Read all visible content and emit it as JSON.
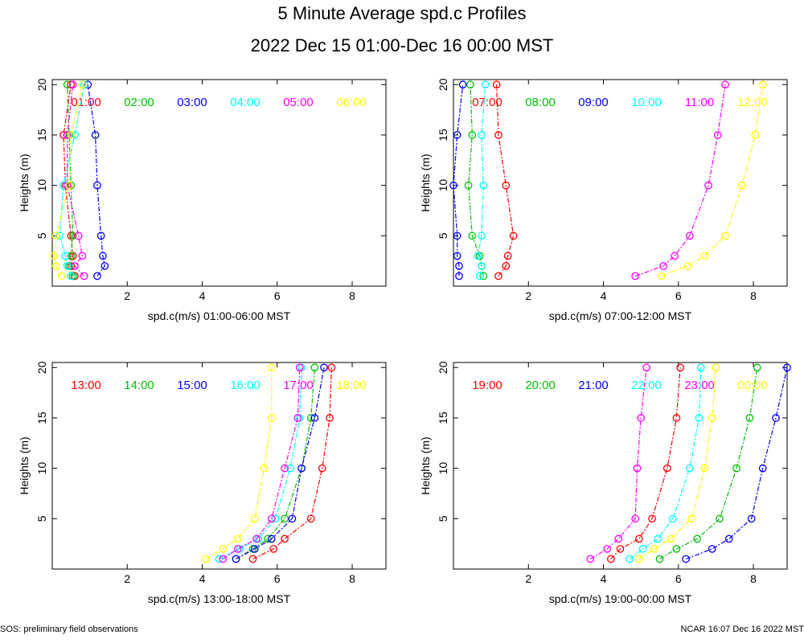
{
  "title": "5 Minute Average spd.c Profiles",
  "subtitle": "2022 Dec 15 01:00-Dec 16 00:00 MST",
  "footer": {
    "left": "SOS: preliminary field observations",
    "right": "NCAR 16:07 Dec 16 2022 MST"
  },
  "colors": [
    "#ff0000",
    "#00c000",
    "#0000ff",
    "#00ffff",
    "#ff00ff",
    "#ffff00"
  ],
  "chart_data": [
    {
      "type": "line",
      "ylabel": "Heights (m)",
      "xlabel": "spd.c(m/s) 01:00-06:00 MST",
      "xlim": [
        0,
        8.9
      ],
      "ylim": [
        0,
        20.5
      ],
      "xticks": [
        "2",
        "4",
        "6",
        "8"
      ],
      "yticks": [
        "5",
        "10",
        "15",
        "20"
      ],
      "heights": [
        1,
        2,
        3,
        5,
        10,
        15,
        20
      ],
      "series": [
        {
          "name": "01:00",
          "values": [
            0.6,
            0.5,
            0.55,
            0.5,
            0.35,
            0.3,
            0.5
          ]
        },
        {
          "name": "02:00",
          "values": [
            0.55,
            0.45,
            0.5,
            0.55,
            0.5,
            0.45,
            0.4
          ]
        },
        {
          "name": "03:00",
          "values": [
            1.2,
            1.4,
            1.35,
            1.3,
            1.2,
            1.15,
            0.95
          ]
        },
        {
          "name": "04:00",
          "values": [
            0.5,
            0.4,
            0.35,
            0.2,
            0.3,
            0.6,
            0.85
          ]
        },
        {
          "name": "05:00",
          "values": [
            0.85,
            0.6,
            0.8,
            0.7,
            0.4,
            0.4,
            0.55
          ]
        },
        {
          "name": "06:00",
          "values": [
            0.25,
            0.1,
            0.05,
            0.1,
            0.45,
            0.5,
            0.8
          ]
        }
      ]
    },
    {
      "type": "line",
      "ylabel": "Heights (m)",
      "xlabel": "spd.c(m/s) 07:00-12:00 MST",
      "xlim": [
        0,
        8.9
      ],
      "ylim": [
        0,
        20.5
      ],
      "xticks": [
        "2",
        "4",
        "6",
        "8"
      ],
      "yticks": [
        "5",
        "10",
        "15",
        "20"
      ],
      "heights": [
        1,
        2,
        3,
        5,
        10,
        15,
        20
      ],
      "series": [
        {
          "name": "07:00",
          "values": [
            1.2,
            1.4,
            1.45,
            1.6,
            1.4,
            1.2,
            1.15
          ]
        },
        {
          "name": "08:00",
          "values": [
            0.8,
            0.75,
            0.7,
            0.5,
            0.4,
            0.5,
            0.45
          ]
        },
        {
          "name": "09:00",
          "values": [
            0.15,
            0.15,
            0.1,
            0.1,
            0.0,
            0.1,
            0.25
          ]
        },
        {
          "name": "10:00",
          "values": [
            0.7,
            0.75,
            0.65,
            0.75,
            0.8,
            0.75,
            0.85
          ]
        },
        {
          "name": "11:00",
          "values": [
            4.85,
            5.6,
            5.9,
            6.3,
            6.8,
            7.05,
            7.25
          ]
        },
        {
          "name": "12:00",
          "values": [
            5.55,
            6.25,
            6.7,
            7.25,
            7.7,
            8.05,
            8.25
          ]
        }
      ]
    },
    {
      "type": "line",
      "ylabel": "Heights (m)",
      "xlabel": "spd.c(m/s) 13:00-18:00 MST",
      "xlim": [
        0,
        8.9
      ],
      "ylim": [
        0,
        20.5
      ],
      "xticks": [
        "2",
        "4",
        "6",
        "8"
      ],
      "yticks": [
        "5",
        "10",
        "15",
        "20"
      ],
      "heights": [
        1,
        2,
        3,
        5,
        10,
        15,
        20
      ],
      "series": [
        {
          "name": "13:00",
          "values": [
            5.35,
            5.9,
            6.2,
            6.9,
            7.2,
            7.4,
            7.45
          ]
        },
        {
          "name": "14:00",
          "values": [
            4.9,
            5.35,
            5.75,
            6.2,
            6.65,
            6.9,
            7.0
          ]
        },
        {
          "name": "15:00",
          "values": [
            4.9,
            5.4,
            5.85,
            6.4,
            6.65,
            7.0,
            7.25
          ]
        },
        {
          "name": "16:00",
          "values": [
            4.45,
            5.0,
            5.5,
            5.95,
            6.35,
            6.6,
            6.65
          ]
        },
        {
          "name": "17:00",
          "values": [
            4.55,
            4.95,
            5.45,
            5.85,
            6.2,
            6.55,
            6.6
          ]
        },
        {
          "name": "18:00",
          "values": [
            4.1,
            4.55,
            4.95,
            5.4,
            5.65,
            5.85,
            5.85
          ]
        }
      ]
    },
    {
      "type": "line",
      "ylabel": "Heights (m)",
      "xlabel": "spd.c(m/s) 19:00-00:00 MST",
      "xlim": [
        0,
        8.9
      ],
      "ylim": [
        0,
        20.5
      ],
      "xticks": [
        "2",
        "4",
        "6",
        "8"
      ],
      "yticks": [
        "5",
        "10",
        "15",
        "20"
      ],
      "heights": [
        1,
        2,
        3,
        5,
        10,
        15,
        20
      ],
      "series": [
        {
          "name": "19:00",
          "values": [
            4.2,
            4.45,
            4.95,
            5.3,
            5.7,
            5.95,
            6.05
          ]
        },
        {
          "name": "20:00",
          "values": [
            5.5,
            5.95,
            6.5,
            7.1,
            7.55,
            7.9,
            8.1
          ]
        },
        {
          "name": "21:00",
          "values": [
            6.2,
            6.9,
            7.35,
            7.95,
            8.25,
            8.6,
            8.9
          ]
        },
        {
          "name": "22:00",
          "values": [
            4.7,
            5.05,
            5.45,
            5.85,
            6.3,
            6.55,
            6.6
          ]
        },
        {
          "name": "23:00",
          "values": [
            3.65,
            4.1,
            4.4,
            4.85,
            4.9,
            5.0,
            5.15
          ]
        },
        {
          "name": "00:00",
          "values": [
            4.95,
            5.35,
            5.8,
            6.35,
            6.7,
            6.9,
            7.0
          ]
        }
      ]
    }
  ]
}
